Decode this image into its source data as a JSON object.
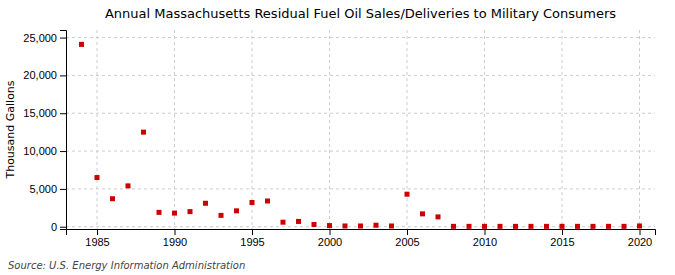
{
  "chart_data": {
    "type": "scatter",
    "title": "Annual Massachusetts Residual Fuel Oil Sales/Deliveries to Military Consumers",
    "ylabel": "Thousand Gallons",
    "source": "Source: U.S. Energy Information Administration",
    "color": "#cc0000",
    "marker": "square",
    "grid": true,
    "xlim": [
      1983,
      2021
    ],
    "ylim": [
      -300,
      26000
    ],
    "xticks": [
      1985,
      1990,
      1995,
      2000,
      2005,
      2010,
      2015,
      2020
    ],
    "yticks": [
      0,
      {
        "value": 5000,
        "label": "5,000"
      },
      {
        "value": 10000,
        "label": "10,000"
      },
      {
        "value": 15000,
        "label": "15,000"
      },
      {
        "value": 20000,
        "label": "20,000"
      },
      {
        "value": 25000,
        "label": "25,000"
      }
    ],
    "x": [
      1984,
      1985,
      1986,
      1987,
      1988,
      1989,
      1990,
      1991,
      1992,
      1993,
      1994,
      1995,
      1996,
      1997,
      1998,
      1999,
      2000,
      2001,
      2002,
      2003,
      2004,
      2005,
      2006,
      2007,
      2008,
      2009,
      2010,
      2011,
      2012,
      2013,
      2014,
      2015,
      2016,
      2017,
      2018,
      2019,
      2020
    ],
    "values": [
      24100,
      6500,
      3700,
      5400,
      12500,
      1900,
      1800,
      2000,
      3100,
      1500,
      2100,
      3200,
      3400,
      600,
      700,
      300,
      150,
      100,
      100,
      200,
      100,
      4300,
      1700,
      1300,
      50,
      50,
      50,
      50,
      50,
      50,
      50,
      50,
      50,
      50,
      50,
      50,
      100
    ]
  }
}
